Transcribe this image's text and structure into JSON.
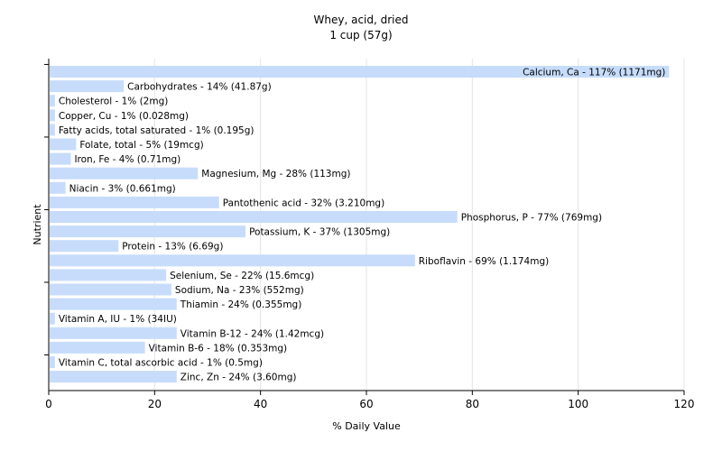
{
  "chart_data": {
    "type": "bar",
    "orientation": "horizontal",
    "title": "Whey, acid, dried",
    "subtitle": "1 cup (57g)",
    "xlabel": "% Daily Value",
    "ylabel": "Nutrient",
    "xlim": [
      0,
      120
    ],
    "x_ticks": [
      "0",
      "20",
      "40",
      "60",
      "80",
      "100",
      "120"
    ],
    "grid": true,
    "colors": {
      "bar": "#c6dcfa",
      "grid": "#e4e4e4",
      "axis": "#000000"
    },
    "categories": [
      "Calcium, Ca",
      "Carbohydrates",
      "Cholesterol",
      "Copper, Cu",
      "Fatty acids, total saturated",
      "Folate, total",
      "Iron, Fe",
      "Magnesium, Mg",
      "Niacin",
      "Pantothenic acid",
      "Phosphorus, P",
      "Potassium, K",
      "Protein",
      "Riboflavin",
      "Selenium, Se",
      "Sodium, Na",
      "Thiamin",
      "Vitamin A, IU",
      "Vitamin B-12",
      "Vitamin B-6",
      "Vitamin C, total ascorbic acid",
      "Zinc, Zn"
    ],
    "values": [
      117,
      14,
      1,
      1,
      1,
      5,
      4,
      28,
      3,
      32,
      77,
      37,
      13,
      69,
      22,
      23,
      24,
      1,
      24,
      18,
      1,
      24
    ],
    "labels": [
      "Calcium, Ca - 117% (1171mg)",
      "Carbohydrates - 14% (41.87g)",
      "Cholesterol - 1% (2mg)",
      "Copper, Cu - 1% (0.028mg)",
      "Fatty acids, total saturated - 1% (0.195g)",
      "Folate, total - 5% (19mcg)",
      "Iron, Fe - 4% (0.71mg)",
      "Magnesium, Mg - 28% (113mg)",
      "Niacin - 3% (0.661mg)",
      "Pantothenic acid - 32% (3.210mg)",
      "Phosphorus, P - 77% (769mg)",
      "Potassium, K - 37% (1305mg)",
      "Protein - 13% (6.69g)",
      "Riboflavin - 69% (1.174mg)",
      "Selenium, Se - 22% (15.6mcg)",
      "Sodium, Na - 23% (552mg)",
      "Thiamin - 24% (0.355mg)",
      "Vitamin A, IU - 1% (34IU)",
      "Vitamin B-12 - 24% (1.42mcg)",
      "Vitamin B-6 - 18% (0.353mg)",
      "Vitamin C, total ascorbic acid - 1% (0.5mg)",
      "Zinc, Zn - 24% (3.60mg)"
    ]
  }
}
